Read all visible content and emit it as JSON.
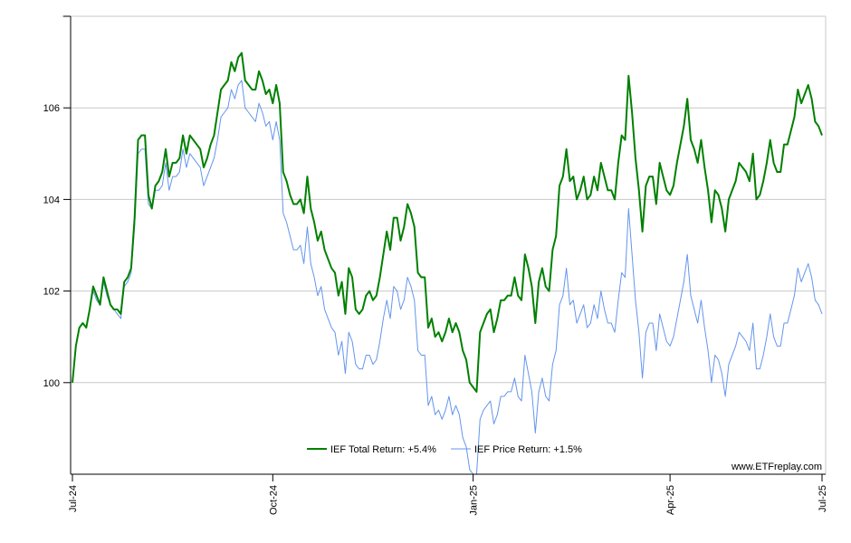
{
  "chart_data": {
    "type": "line",
    "watermark": "www.ETFreplay.com",
    "x_ticks": [
      "Jul-24",
      "Oct-24",
      "Jan-25",
      "Apr-25",
      "Jul-25"
    ],
    "y_ticks": [
      100,
      102,
      104,
      106
    ],
    "ylim": [
      98,
      108
    ],
    "grid": true,
    "legend": "bottom-center",
    "series": [
      {
        "name": "IEF Total Return: +5.4%",
        "color": "#008000",
        "values": [
          100.0,
          100.8,
          101.2,
          101.3,
          101.2,
          101.6,
          102.1,
          101.9,
          101.7,
          102.3,
          102.0,
          101.7,
          101.6,
          101.6,
          101.5,
          102.2,
          102.3,
          102.5,
          103.6,
          105.3,
          105.4,
          105.4,
          104.1,
          103.8,
          104.3,
          104.4,
          104.6,
          105.1,
          104.5,
          104.8,
          104.8,
          104.9,
          105.4,
          105.0,
          105.4,
          105.3,
          105.2,
          105.1,
          104.7,
          104.9,
          105.2,
          105.4,
          105.9,
          106.4,
          106.5,
          106.6,
          107.0,
          106.8,
          107.1,
          107.2,
          106.6,
          106.5,
          106.4,
          106.4,
          106.8,
          106.6,
          106.3,
          106.4,
          106.1,
          106.5,
          106.1,
          104.6,
          104.4,
          104.1,
          103.9,
          103.9,
          104.0,
          103.7,
          104.5,
          103.8,
          103.5,
          103.1,
          103.3,
          102.9,
          102.7,
          102.5,
          102.4,
          101.9,
          102.2,
          101.5,
          102.5,
          102.3,
          101.6,
          101.5,
          101.6,
          101.9,
          102.0,
          101.8,
          101.9,
          102.3,
          102.8,
          103.3,
          102.9,
          103.6,
          103.6,
          103.1,
          103.4,
          103.9,
          103.7,
          103.4,
          102.4,
          102.3,
          102.3,
          101.2,
          101.4,
          101.0,
          101.1,
          100.9,
          101.1,
          101.4,
          101.1,
          101.3,
          101.1,
          100.7,
          100.5,
          100.0,
          99.9,
          99.8,
          101.1,
          101.3,
          101.5,
          101.6,
          101.1,
          101.4,
          101.8,
          101.8,
          101.9,
          101.9,
          102.3,
          101.9,
          101.8,
          102.8,
          102.5,
          102.1,
          101.3,
          102.2,
          102.5,
          102.1,
          102.0,
          102.9,
          103.2,
          104.3,
          104.5,
          105.1,
          104.4,
          104.5,
          104.0,
          104.2,
          104.5,
          104.0,
          104.1,
          104.5,
          104.2,
          104.8,
          104.5,
          104.2,
          104.2,
          104.0,
          104.8,
          105.4,
          105.3,
          106.7,
          105.9,
          104.9,
          104.2,
          103.3,
          104.3,
          104.5,
          104.5,
          103.9,
          104.8,
          104.5,
          104.2,
          104.1,
          104.3,
          104.8,
          105.2,
          105.6,
          106.2,
          105.3,
          105.1,
          104.8,
          105.3,
          104.7,
          104.2,
          103.5,
          104.2,
          104.1,
          103.8,
          103.3,
          104.0,
          104.2,
          104.4,
          104.8,
          104.7,
          104.6,
          104.4,
          105.0,
          104.0,
          104.1,
          104.4,
          104.8,
          105.3,
          104.8,
          104.6,
          104.6,
          105.2,
          105.2,
          105.5,
          105.8,
          106.4,
          106.1,
          106.3,
          106.5,
          106.2,
          105.7,
          105.6,
          105.4
        ]
      },
      {
        "name": "IEF Price Return: +1.5%",
        "color": "#6495ED",
        "values": [
          100.0,
          100.8,
          101.2,
          101.3,
          101.2,
          101.6,
          102.0,
          101.8,
          101.7,
          102.2,
          101.9,
          101.7,
          101.6,
          101.5,
          101.4,
          102.1,
          102.2,
          102.4,
          103.4,
          105.0,
          105.1,
          105.1,
          103.9,
          103.8,
          104.2,
          104.2,
          104.3,
          104.8,
          104.2,
          104.5,
          104.5,
          104.6,
          105.1,
          104.7,
          105.0,
          104.9,
          104.8,
          104.7,
          104.3,
          104.5,
          104.7,
          104.9,
          105.3,
          105.8,
          105.9,
          106.0,
          106.4,
          106.2,
          106.5,
          106.6,
          106.0,
          105.9,
          105.8,
          105.7,
          106.1,
          105.9,
          105.6,
          105.7,
          105.3,
          105.7,
          105.3,
          103.7,
          103.5,
          103.2,
          102.9,
          102.9,
          103.0,
          102.6,
          103.4,
          102.6,
          102.3,
          101.9,
          102.1,
          101.6,
          101.4,
          101.2,
          101.1,
          100.6,
          100.9,
          100.2,
          101.1,
          100.9,
          100.4,
          100.3,
          100.3,
          100.6,
          100.6,
          100.4,
          100.5,
          100.9,
          101.4,
          101.8,
          101.4,
          102.1,
          102.0,
          101.6,
          101.8,
          102.3,
          102.1,
          101.8,
          100.7,
          100.6,
          100.6,
          99.5,
          99.7,
          99.3,
          99.4,
          99.2,
          99.4,
          99.7,
          99.3,
          99.5,
          99.3,
          98.8,
          98.6,
          98.1,
          98.0,
          97.9,
          99.2,
          99.4,
          99.5,
          99.6,
          99.1,
          99.3,
          99.7,
          99.7,
          99.8,
          99.8,
          100.1,
          99.7,
          99.6,
          100.6,
          100.2,
          99.8,
          98.9,
          99.8,
          100.1,
          99.7,
          99.6,
          100.4,
          100.7,
          101.7,
          101.9,
          102.5,
          101.7,
          101.8,
          101.3,
          101.5,
          101.7,
          101.2,
          101.3,
          101.7,
          101.4,
          102.0,
          101.6,
          101.3,
          101.3,
          101.1,
          101.8,
          102.4,
          102.3,
          103.8,
          102.8,
          101.8,
          101.1,
          100.1,
          101.1,
          101.3,
          101.3,
          100.7,
          101.5,
          101.2,
          100.9,
          100.8,
          101.0,
          101.4,
          101.8,
          102.2,
          102.8,
          101.9,
          101.6,
          101.3,
          101.8,
          101.2,
          100.7,
          100.0,
          100.6,
          100.5,
          100.2,
          99.7,
          100.4,
          100.6,
          100.8,
          101.1,
          101.0,
          100.9,
          100.7,
          101.3,
          100.3,
          100.3,
          100.6,
          101.0,
          101.5,
          101.0,
          100.8,
          100.8,
          101.3,
          101.3,
          101.6,
          101.9,
          102.5,
          102.2,
          102.4,
          102.6,
          102.3,
          101.8,
          101.7,
          101.5
        ]
      }
    ]
  }
}
